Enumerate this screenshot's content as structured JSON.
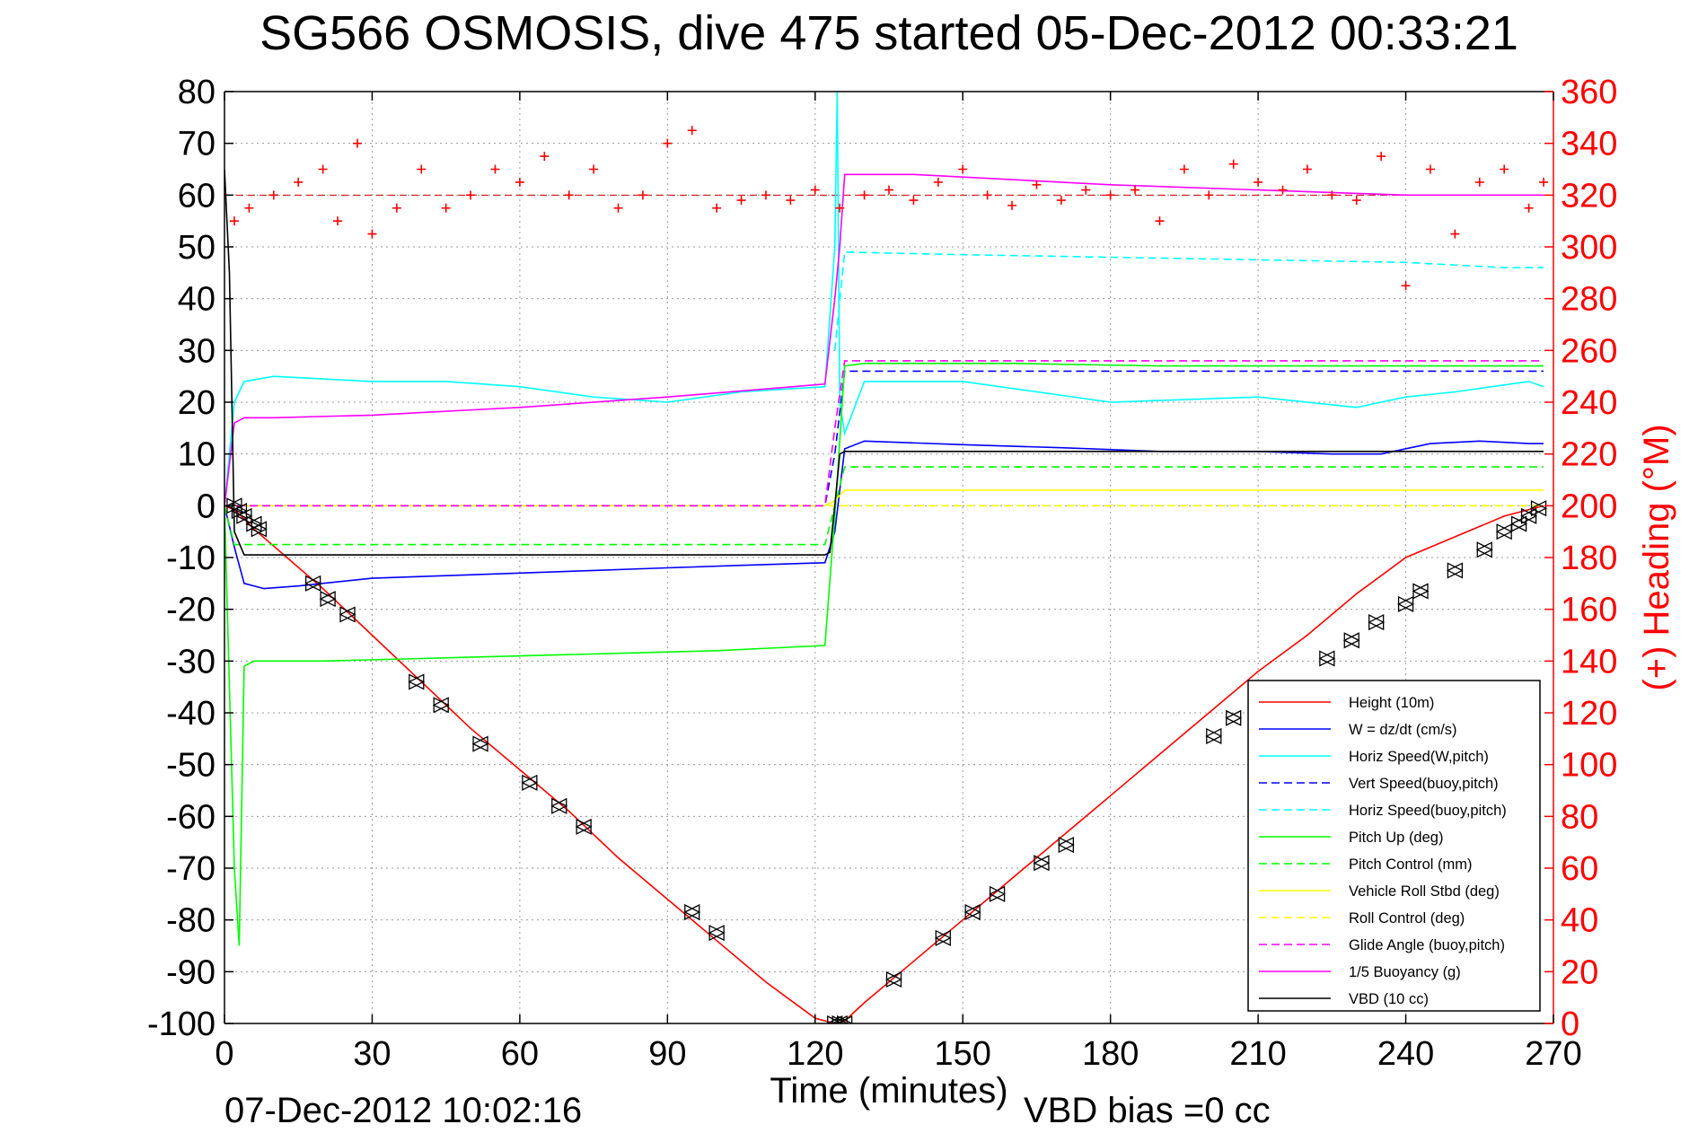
{
  "chart_data": {
    "type": "line",
    "title": "SG566 OSMOSIS, dive 475 started 05-Dec-2012 00:33:21",
    "xlabel": "Time (minutes)",
    "ylabel_right": "(+) Heading (°M)",
    "footer_left": "07-Dec-2012 10:02:16",
    "footer_right": "VBD bias =0 cc",
    "xlim": [
      0,
      270
    ],
    "ylim": [
      -100,
      80
    ],
    "ylim_right": [
      0,
      360
    ],
    "x_ticks": [
      0,
      30,
      60,
      90,
      120,
      150,
      180,
      210,
      240,
      270
    ],
    "x_tick_labels": [
      "0",
      "30",
      "60",
      "90",
      "120",
      "150",
      "180",
      "210",
      "240",
      "270"
    ],
    "y_ticks": [
      80,
      70,
      60,
      50,
      40,
      30,
      20,
      10,
      0,
      -10,
      -20,
      -30,
      -40,
      -50,
      -60,
      -70,
      -80,
      -90,
      -100
    ],
    "y_tick_labels": [
      "80",
      "70",
      "60",
      "50",
      "40",
      "30",
      "20",
      "10",
      "0",
      "-10",
      "-20",
      "-30",
      "-40",
      "-50",
      "-60",
      "-70",
      "-80",
      "-90",
      "-100"
    ],
    "y_right_ticks": [
      360,
      340,
      320,
      300,
      280,
      260,
      240,
      220,
      200,
      180,
      160,
      140,
      120,
      100,
      80,
      60,
      40,
      20,
      0
    ],
    "y_right_tick_labels": [
      "360",
      "340",
      "320",
      "300",
      "280",
      "260",
      "240",
      "220",
      "200",
      "180",
      "160",
      "140",
      "120",
      "100",
      "80",
      "60",
      "40",
      "20",
      "0"
    ],
    "grid": true,
    "legend_position": "bottom-right",
    "heading_reference": 320,
    "series": [
      {
        "name": "Height (10m)",
        "color": "#ff0000",
        "style": "solid",
        "x": [
          0,
          1,
          2,
          4,
          6,
          20,
          30,
          40,
          50,
          60,
          70,
          80,
          90,
          100,
          110,
          120,
          124,
          126,
          130,
          140,
          150,
          160,
          170,
          180,
          190,
          200,
          210,
          220,
          230,
          240,
          250,
          260,
          268
        ],
        "y": [
          0,
          -0.4,
          -0.8,
          -2.5,
          -4.5,
          -16,
          -25,
          -34,
          -43,
          -51,
          -59,
          -68,
          -76,
          -84,
          -92,
          -99,
          -100,
          -99.5,
          -96,
          -88,
          -80,
          -72,
          -64,
          -56,
          -48,
          -40,
          -32,
          -25,
          -17,
          -10,
          -6,
          -2,
          0
        ]
      },
      {
        "name": "W = dz/dt (cm/s)",
        "color": "#0000ff",
        "style": "solid",
        "x": [
          0,
          2,
          4,
          8,
          15,
          30,
          45,
          60,
          75,
          90,
          105,
          122,
          124,
          126,
          130,
          150,
          170,
          190,
          210,
          225,
          235,
          245,
          255,
          265,
          268
        ],
        "y": [
          0,
          -8,
          -15,
          -16,
          -15.5,
          -14,
          -13.5,
          -13,
          -12.5,
          -12,
          -11.5,
          -11,
          -5,
          11,
          12.5,
          11.8,
          11.2,
          10.5,
          10.5,
          10,
          10,
          12,
          12.5,
          12,
          12
        ]
      },
      {
        "name": "Horiz Speed(W,pitch)",
        "color": "#00ffff",
        "style": "solid",
        "x": [
          0,
          2,
          4,
          10,
          20,
          30,
          45,
          60,
          75,
          90,
          105,
          122,
          124,
          124.5,
          125,
          126,
          130,
          150,
          180,
          210,
          230,
          240,
          250,
          265,
          268
        ],
        "y": [
          0,
          20,
          24,
          25,
          24.5,
          24,
          24,
          23,
          21,
          20,
          22,
          23,
          50,
          80,
          20,
          14,
          24,
          24,
          20,
          21,
          19,
          21,
          22,
          24,
          23
        ]
      },
      {
        "name": "Vert Speed(buoy,pitch)",
        "color": "#0000ff",
        "style": "dashed",
        "x": [
          0,
          2,
          4,
          122,
          124,
          126,
          268
        ],
        "y": [
          0,
          0,
          0,
          0,
          10,
          26,
          26
        ]
      },
      {
        "name": "Horiz Speed(buoy,pitch)",
        "color": "#00ffff",
        "style": "dashed",
        "x": [
          124,
          126,
          150,
          180,
          210,
          240,
          260,
          268
        ],
        "y": [
          30,
          49,
          48.5,
          48,
          47.5,
          47,
          46,
          46
        ]
      },
      {
        "name": "Pitch Up (deg)",
        "color": "#00ff00",
        "style": "solid",
        "x": [
          0,
          2,
          3,
          4,
          6,
          20,
          40,
          60,
          80,
          100,
          122,
          124,
          126,
          130,
          160,
          190,
          220,
          250,
          268
        ],
        "y": [
          0,
          -70,
          -85,
          -31,
          -30,
          -30,
          -29.5,
          -29,
          -28.5,
          -28,
          -27,
          -2,
          27,
          27.5,
          27.5,
          27,
          27,
          27,
          27
        ]
      },
      {
        "name": "Pitch Control (mm)",
        "color": "#00ff00",
        "style": "dashed",
        "x": [
          0,
          2,
          4,
          122,
          124,
          126,
          268
        ],
        "y": [
          0,
          -7.5,
          -7.5,
          -7.5,
          0,
          7.5,
          7.5
        ]
      },
      {
        "name": "Vehicle Roll Stbd (deg)",
        "color": "#ffff00",
        "style": "solid",
        "x": [
          0,
          2,
          4,
          60,
          122,
          124,
          126,
          180,
          268
        ],
        "y": [
          0,
          0,
          0,
          0,
          0,
          1,
          3,
          3,
          3
        ]
      },
      {
        "name": "Roll Control (deg)",
        "color": "#ffff00",
        "style": "dashed",
        "x": [
          0,
          2,
          4,
          268
        ],
        "y": [
          0,
          0,
          0,
          0
        ]
      },
      {
        "name": "Glide Angle (buoy,pitch)",
        "color": "#ff00ff",
        "style": "dashed",
        "x": [
          0,
          2,
          4,
          122,
          124,
          126,
          268
        ],
        "y": [
          0,
          0,
          0,
          0,
          15,
          28,
          28
        ]
      },
      {
        "name": "1/5 Buoyancy (g)",
        "color": "#ff00ff",
        "style": "solid",
        "x": [
          0,
          2,
          4,
          10,
          30,
          60,
          90,
          122,
          124,
          125,
          126,
          140,
          180,
          210,
          240,
          268
        ],
        "y": [
          0,
          16,
          17,
          17,
          17.5,
          19,
          21,
          23.5,
          40,
          50,
          64,
          64,
          62,
          61,
          60,
          60
        ]
      },
      {
        "name": "VBD (10 cc)",
        "color": "#000000",
        "style": "solid",
        "x": [
          0,
          1,
          2,
          4,
          122,
          123,
          124,
          125,
          126,
          268
        ],
        "y": [
          65,
          45,
          -5,
          -9.5,
          -9.5,
          -9,
          0,
          10,
          10.5,
          10.5
        ]
      }
    ],
    "heading_series": {
      "name": "(+) Heading",
      "color": "#ff0000",
      "marker": "+",
      "axis": "right",
      "x": [
        0,
        2,
        5,
        10,
        15,
        20,
        23,
        27,
        30,
        35,
        40,
        45,
        50,
        55,
        60,
        65,
        70,
        75,
        80,
        85,
        90,
        95,
        100,
        105,
        110,
        115,
        120,
        125,
        130,
        135,
        140,
        145,
        150,
        155,
        160,
        165,
        170,
        175,
        180,
        185,
        190,
        195,
        200,
        205,
        210,
        215,
        220,
        225,
        230,
        235,
        240,
        245,
        250,
        255,
        260,
        265,
        268
      ],
      "y": [
        320,
        310,
        315,
        320,
        325,
        330,
        310,
        340,
        305,
        315,
        330,
        315,
        320,
        330,
        325,
        335,
        320,
        330,
        315,
        320,
        340,
        345,
        315,
        318,
        320,
        318,
        322,
        315,
        320,
        322,
        318,
        325,
        330,
        320,
        316,
        324,
        318,
        322,
        320,
        322,
        310,
        330,
        320,
        332,
        325,
        322,
        330,
        320,
        318,
        335,
        285,
        330,
        305,
        325,
        330,
        315,
        325
      ]
    },
    "markers": {
      "symbol": "triangle-pair",
      "color": "#000000",
      "x": [
        2,
        3,
        4,
        6,
        7,
        18,
        21,
        25,
        39,
        44,
        52,
        62,
        68,
        73,
        95,
        100,
        124,
        125,
        126,
        136,
        146,
        152,
        157,
        166,
        171,
        201,
        205,
        224,
        229,
        234,
        240,
        243,
        250,
        256,
        260,
        263,
        265,
        267
      ],
      "y": [
        0,
        -1,
        -2,
        -3.5,
        -4.5,
        -15,
        -18,
        -21,
        -34,
        -38.5,
        -46,
        -53.5,
        -58,
        -62,
        -78.5,
        -82.5,
        -100,
        -100,
        -100,
        -91.5,
        -83.5,
        -78.5,
        -75,
        -69,
        -65.5,
        -44.5,
        -41,
        -29.5,
        -26,
        -22.5,
        -19,
        -16.5,
        -12.5,
        -8.5,
        -5,
        -3.5,
        -2,
        -0.5
      ]
    }
  }
}
